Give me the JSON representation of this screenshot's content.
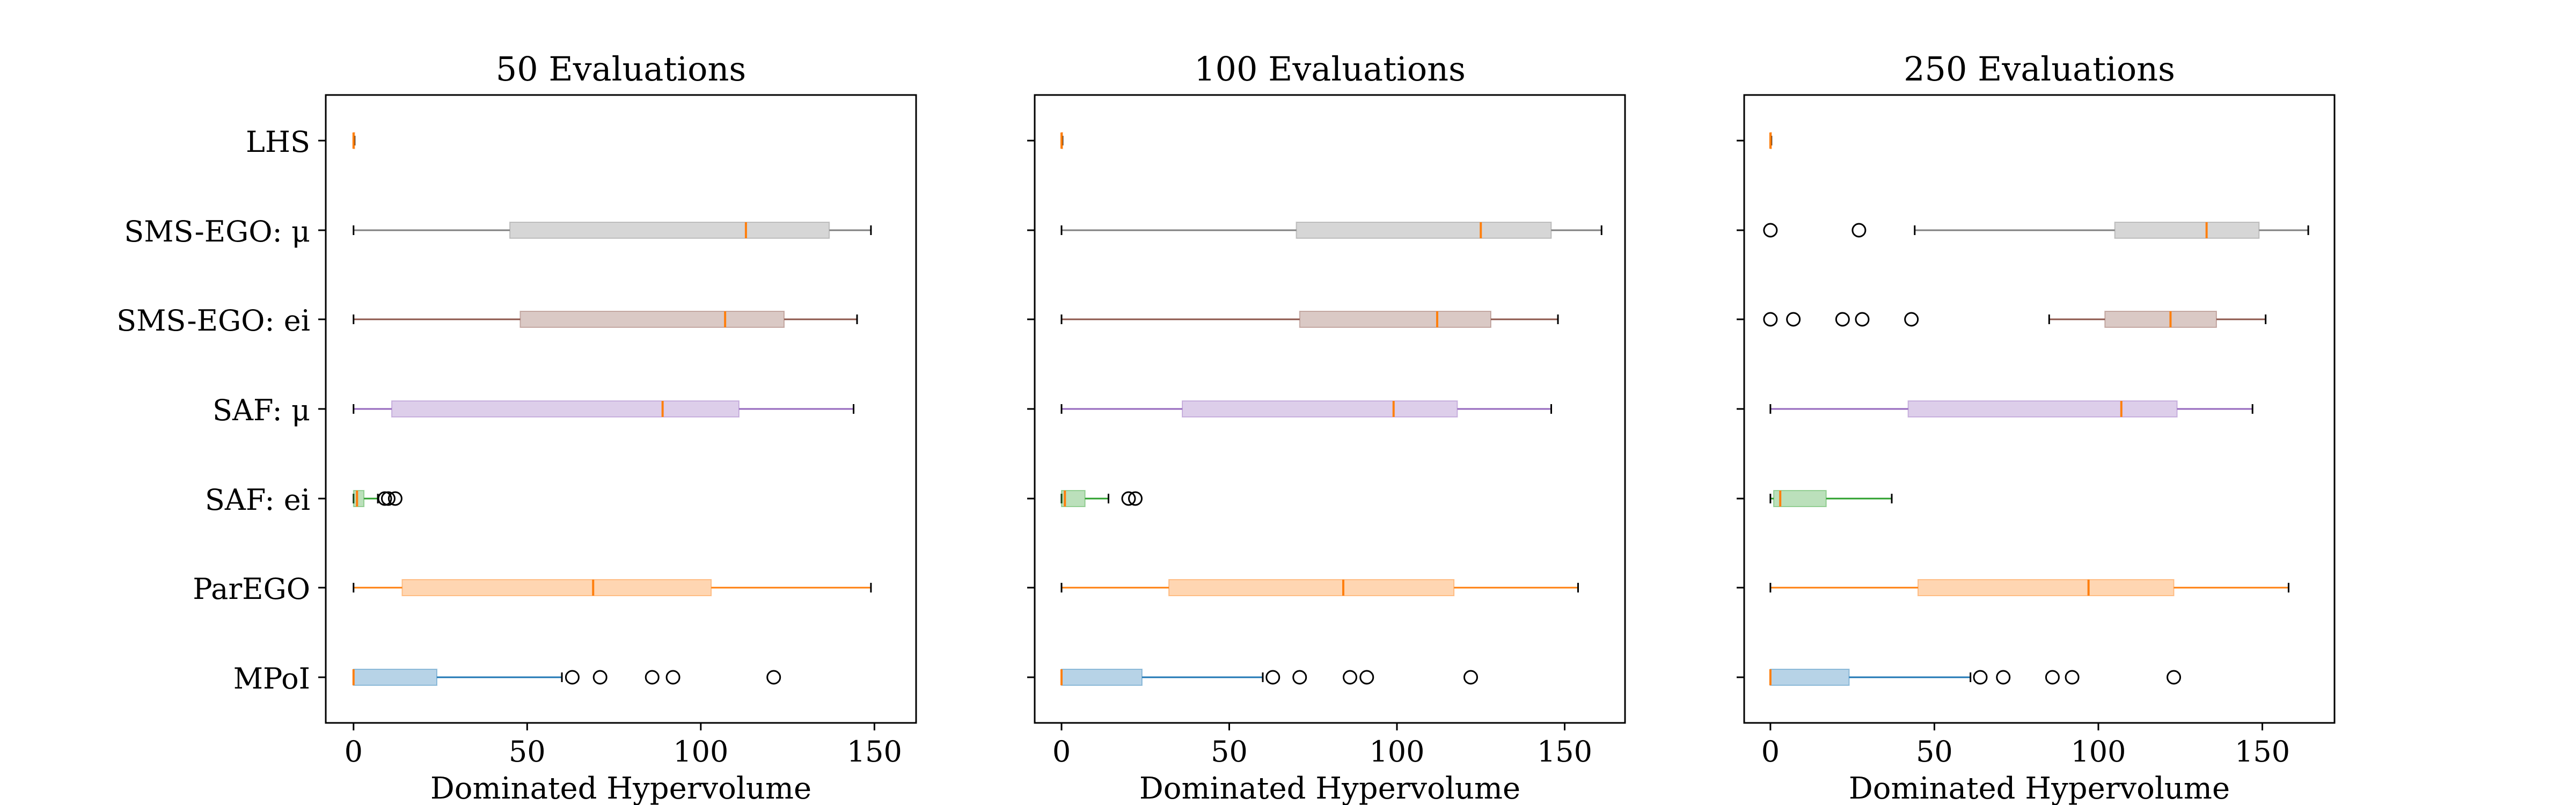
{
  "chart_data": [
    {
      "type": "boxplot",
      "title": "50 Evaluations",
      "xlabel": "Dominated Hypervolume",
      "xlim": [
        -8,
        162
      ],
      "xticks": [
        0,
        50,
        100,
        150
      ],
      "categories": [
        "LHS",
        "SMS-EGO: μ",
        "SMS-EGO: ei",
        "SAF: μ",
        "SAF: ei",
        "ParEGO",
        "MPoI"
      ],
      "series": [
        {
          "name": "LHS",
          "min": 0,
          "q1": 0,
          "median": 0,
          "q3": 0.3,
          "max": 0.3,
          "outliers": []
        },
        {
          "name": "SMS-EGO: μ",
          "min": 0,
          "q1": 45,
          "median": 113,
          "q3": 137,
          "max": 149,
          "outliers": []
        },
        {
          "name": "SMS-EGO: ei",
          "min": 0,
          "q1": 48,
          "median": 107,
          "q3": 124,
          "max": 145,
          "outliers": []
        },
        {
          "name": "SAF: μ",
          "min": 0,
          "q1": 11,
          "median": 89,
          "q3": 111,
          "max": 144,
          "outliers": []
        },
        {
          "name": "SAF: ei",
          "min": 0,
          "q1": 0,
          "median": 1,
          "q3": 3,
          "max": 7,
          "outliers": [
            9,
            10,
            12
          ]
        },
        {
          "name": "ParEGO",
          "min": 0,
          "q1": 14,
          "median": 69,
          "q3": 103,
          "max": 149,
          "outliers": []
        },
        {
          "name": "MPoI",
          "min": 0,
          "q1": 0,
          "median": 0,
          "q3": 24,
          "max": 60,
          "outliers": [
            63,
            71,
            86,
            92,
            121
          ]
        }
      ]
    },
    {
      "type": "boxplot",
      "title": "100 Evaluations",
      "xlabel": "Dominated Hypervolume",
      "xlim": [
        -8,
        168
      ],
      "xticks": [
        0,
        50,
        100,
        150
      ],
      "categories": [
        "LHS",
        "SMS-EGO: μ",
        "SMS-EGO: ei",
        "SAF: μ",
        "SAF: ei",
        "ParEGO",
        "MPoI"
      ],
      "series": [
        {
          "name": "LHS",
          "min": 0,
          "q1": 0,
          "median": 0,
          "q3": 0.3,
          "max": 0.3,
          "outliers": []
        },
        {
          "name": "SMS-EGO: μ",
          "min": 0,
          "q1": 70,
          "median": 125,
          "q3": 146,
          "max": 161,
          "outliers": []
        },
        {
          "name": "SMS-EGO: ei",
          "min": 0,
          "q1": 71,
          "median": 112,
          "q3": 128,
          "max": 148,
          "outliers": []
        },
        {
          "name": "SAF: μ",
          "min": 0,
          "q1": 36,
          "median": 99,
          "q3": 118,
          "max": 146,
          "outliers": []
        },
        {
          "name": "SAF: ei",
          "min": 0,
          "q1": 0,
          "median": 1,
          "q3": 7,
          "max": 14,
          "outliers": [
            20,
            22
          ]
        },
        {
          "name": "ParEGO",
          "min": 0,
          "q1": 32,
          "median": 84,
          "q3": 117,
          "max": 154,
          "outliers": []
        },
        {
          "name": "MPoI",
          "min": 0,
          "q1": 0,
          "median": 0,
          "q3": 24,
          "max": 60,
          "outliers": [
            63,
            71,
            86,
            91,
            122
          ]
        }
      ]
    },
    {
      "type": "boxplot",
      "title": "250 Evaluations",
      "xlabel": "Dominated Hypervolume",
      "xlim": [
        -8,
        172
      ],
      "xticks": [
        0,
        50,
        100,
        150
      ],
      "categories": [
        "LHS",
        "SMS-EGO: μ",
        "SMS-EGO: ei",
        "SAF: μ",
        "SAF: ei",
        "ParEGO",
        "MPoI"
      ],
      "series": [
        {
          "name": "LHS",
          "min": 0,
          "q1": 0,
          "median": 0,
          "q3": 0.3,
          "max": 0.3,
          "outliers": []
        },
        {
          "name": "SMS-EGO: μ",
          "min": 44,
          "q1": 105,
          "median": 133,
          "q3": 149,
          "max": 164,
          "outliers": [
            0,
            27
          ]
        },
        {
          "name": "SMS-EGO: ei",
          "min": 85,
          "q1": 102,
          "median": 122,
          "q3": 136,
          "max": 151,
          "outliers": [
            0,
            7,
            22,
            28,
            43
          ]
        },
        {
          "name": "SAF: μ",
          "min": 0,
          "q1": 42,
          "median": 107,
          "q3": 124,
          "max": 147,
          "outliers": []
        },
        {
          "name": "SAF: ei",
          "min": 0,
          "q1": 1,
          "median": 3,
          "q3": 17,
          "max": 37,
          "outliers": []
        },
        {
          "name": "ParEGO",
          "min": 0,
          "q1": 45,
          "median": 97,
          "q3": 123,
          "max": 158,
          "outliers": []
        },
        {
          "name": "MPoI",
          "min": 0,
          "q1": 0,
          "median": 0,
          "q3": 24,
          "max": 61,
          "outliers": [
            64,
            71,
            86,
            92,
            123
          ]
        }
      ]
    }
  ],
  "colors": {
    "LHS": "#ff7f0e",
    "SMS-EGO: μ": "#7f7f7f",
    "SMS-EGO: ei": "#8c564b",
    "SAF: μ": "#9467bd",
    "SAF: ei": "#2ca02c",
    "ParEGO": "#ff7f0e",
    "MPoI": "#1f77b4",
    "median": "#ff7f0e"
  }
}
